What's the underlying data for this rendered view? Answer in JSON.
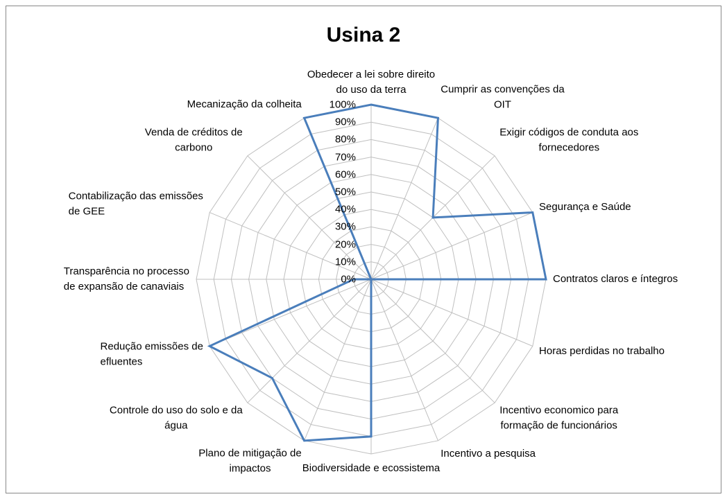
{
  "chart_data": {
    "type": "radar",
    "title": "Usina 2",
    "categories": [
      "Obedecer a lei sobre direito\ndo uso da terra",
      "Cumprir as convenções da\nOIT",
      "Exigir códigos de conduta aos\nfornecedores",
      "Segurança e Saúde",
      "Contratos claros e íntegros",
      "Horas perdidas no trabalho",
      "Incentivo economico para\nformação de funcionários",
      "Incentivo a pesquisa",
      "Biodiversidade e ecossistema",
      "Plano de mitigação de\nimpactos",
      "Controle do uso do solo e da\nágua",
      "Redução emissões de\nefluentes",
      "Transparência no processo\nde expansão de canaviais",
      "Contabilização das emissões\nde GEE",
      "Venda de créditos de\ncarbono",
      "Mecanização da colheita"
    ],
    "series": [
      {
        "name": "Usina 2",
        "color": "#4a7ebb",
        "values": [
          100,
          100,
          50,
          100,
          100,
          0,
          0,
          0,
          90,
          100,
          80,
          100,
          10,
          0,
          0,
          100
        ]
      }
    ],
    "ylim": [
      0,
      100
    ],
    "yticks": [
      {
        "value": 0,
        "label": "0%"
      },
      {
        "value": 10,
        "label": "10%"
      },
      {
        "value": 20,
        "label": "20%"
      },
      {
        "value": 30,
        "label": "30%"
      },
      {
        "value": 40,
        "label": "40%"
      },
      {
        "value": 50,
        "label": "50%"
      },
      {
        "value": 60,
        "label": "60%"
      },
      {
        "value": 70,
        "label": "70%"
      },
      {
        "value": 80,
        "label": "80%"
      },
      {
        "value": 90,
        "label": "90%"
      },
      {
        "value": 100,
        "label": "100%"
      }
    ],
    "grid": true
  }
}
